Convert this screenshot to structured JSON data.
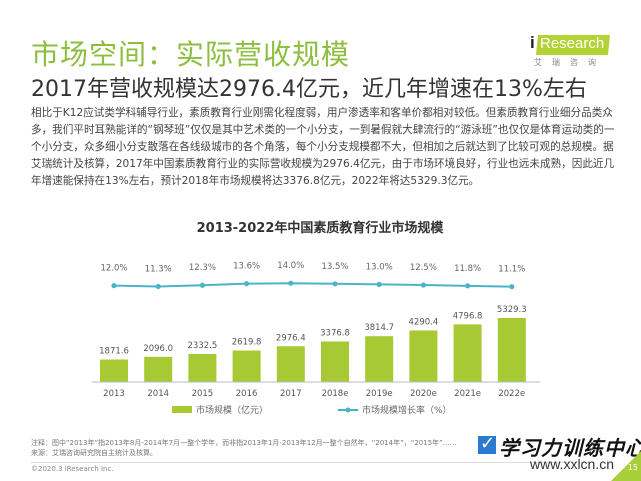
{
  "header": {
    "title": "市场空间：实际营收规模",
    "subtitle": "2017年营收规模达2976.4亿元，近几年增速在13%左右"
  },
  "logo": {
    "brand_i": "i",
    "brand_text": "Research",
    "brand_cn": "艾瑞咨询"
  },
  "body": {
    "paragraph": "相比于K12应试类学科辅导行业，素质教育行业刚需化程度弱，用户渗透率和客单价都相对较低。但素质教育行业细分品类众多，我们平时耳熟能详的“钢琴班”仅仅是其中艺术类的一个小分支，一到暑假就大肆流行的“游泳班”也仅仅是体育运动类的一个小分支，众多细小分支散落在各线级城市的各个角落，每个小分支规模都不大，但相加之后就达到了比较可观的总规模。据艾瑞统计及核算，2017年中国素质教育行业的实际营收规模为2976.4亿元，由于市场环境良好，行业也远未成熟，因此近几年增速能保持在13%左右，预计2018年市场规模将达3376.8亿元，2022年将达5329.3亿元。"
  },
  "colors": {
    "bar": "#a6c934",
    "line": "#4ab4c6",
    "title_green": "#8cbf3f"
  },
  "chart_data": {
    "type": "bar",
    "title": "2013-2022年中国素质教育行业市场规模",
    "categories": [
      "2013",
      "2014",
      "2015",
      "2016",
      "2017",
      "2018e",
      "2019e",
      "2020e",
      "2021e",
      "2022e"
    ],
    "series": [
      {
        "name": "市场规模（亿元）",
        "type": "bar",
        "values": [
          1871.6,
          2096.0,
          2332.5,
          2619.8,
          2976.4,
          3376.8,
          3814.7,
          4290.4,
          4796.8,
          5329.3
        ],
        "labels": [
          "1871.6",
          "2096.0",
          "2332.5",
          "2619.8",
          "2976.4",
          "3376.8",
          "3814.7",
          "4290.4",
          "4796.8",
          "5329.3"
        ]
      },
      {
        "name": "市场规模增长率（%）",
        "type": "line",
        "values": [
          12.0,
          11.3,
          12.3,
          13.6,
          14.0,
          13.5,
          13.0,
          12.5,
          11.8,
          11.1
        ],
        "labels": [
          "12.0%",
          "11.3%",
          "12.3%",
          "13.6%",
          "14.0%",
          "13.5%",
          "13.0%",
          "12.5%",
          "11.8%",
          "11.1%"
        ]
      }
    ],
    "xlabel": "",
    "ylabel": "",
    "ylim": [
      0,
      5329.3
    ],
    "grid": false,
    "legend": "bottom"
  },
  "footer": {
    "note_line1": "注释：图中“2013年”指2013年8月-2014年7月一整个学年，而非指2013年1月-2013年12月一整个自然年，“2014年”，“2015年”……",
    "note_line2": "来源：艾瑞咨询研究院自主统计及核算。",
    "copyright": "©2020.3 iResearch Inc.",
    "page_number": "15"
  },
  "watermark": {
    "check": "✓",
    "text": "学习力训练中心",
    "url": "www.xxlcn.cn"
  }
}
